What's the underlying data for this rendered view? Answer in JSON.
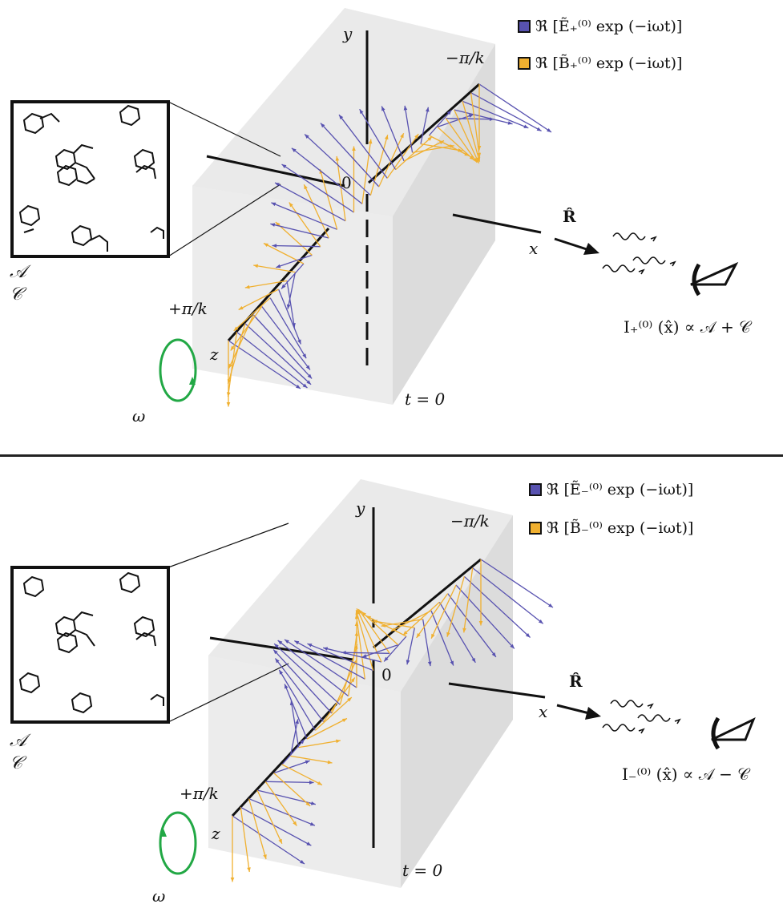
{
  "colors": {
    "electric": "#5852b0",
    "magnetic": "#f0b030",
    "rotation": "#22a845",
    "box": "#d8d8d8"
  },
  "icons": [
    "eye-icon",
    "wave-icon",
    "rotation-arrow-icon",
    "molecule-inset"
  ],
  "panels": [
    {
      "legend_e": "ℜ [Ẽ₊⁽⁰⁾ exp (−iωt)]",
      "legend_b": "ℜ [B̃₊⁽⁰⁾ exp (−iωt)]",
      "axis_y": "y",
      "axis_x": "x",
      "axis_z": "z",
      "origin": "0",
      "minus_label": "−π/k",
      "plus_label": "+π/k",
      "time": "t = 0",
      "omega": "ω",
      "direction": "R̂",
      "intensity": "I₊⁽⁰⁾ (x̂) ∝ 𝒜 + 𝒞",
      "a_label": "𝒜",
      "c_label": "𝒞"
    },
    {
      "legend_e": "ℜ [Ẽ₋⁽⁰⁾ exp (−iωt)]",
      "legend_b": "ℜ [B̃₋⁽⁰⁾ exp (−iωt)]",
      "axis_y": "y",
      "axis_x": "x",
      "axis_z": "z",
      "origin": "0",
      "minus_label": "−π/k",
      "plus_label": "+π/k",
      "time": "t = 0",
      "omega": "ω",
      "direction": "R̂",
      "intensity": "I₋⁽⁰⁾ (x̂) ∝ 𝒜 − 𝒞",
      "a_label": "𝒜",
      "c_label": "𝒞"
    }
  ]
}
